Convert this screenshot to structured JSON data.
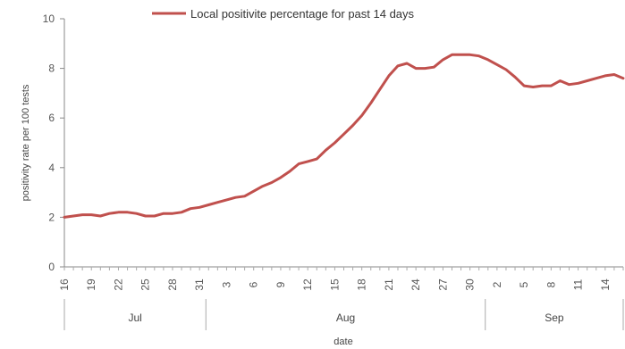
{
  "chart_data": {
    "type": "line",
    "legend": {
      "label": "Local positivite percentage for past 14 days",
      "position": "top",
      "color": "#c0504d"
    },
    "ylabel": "positivity rate per 100 tests",
    "xlabel": "date",
    "ylim": [
      0,
      10
    ],
    "yticks": [
      "0",
      "2",
      "4",
      "6",
      "8",
      "10"
    ],
    "grid": false,
    "x_tick_labels": [
      "16",
      "19",
      "22",
      "25",
      "28",
      "31",
      "3",
      "6",
      "9",
      "12",
      "15",
      "18",
      "21",
      "24",
      "27",
      "30",
      "2",
      "5",
      "8",
      "11",
      "14"
    ],
    "months": [
      "Jul",
      "Aug",
      "Sep"
    ],
    "series": [
      {
        "name": "Local positivite percentage for past 14 days",
        "color": "#c0504d",
        "x": [
          "2020-07-16",
          "2020-07-17",
          "2020-07-18",
          "2020-07-19",
          "2020-07-20",
          "2020-07-21",
          "2020-07-22",
          "2020-07-23",
          "2020-07-24",
          "2020-07-25",
          "2020-07-26",
          "2020-07-27",
          "2020-07-28",
          "2020-07-29",
          "2020-07-30",
          "2020-07-31",
          "2020-08-01",
          "2020-08-02",
          "2020-08-03",
          "2020-08-04",
          "2020-08-05",
          "2020-08-06",
          "2020-08-07",
          "2020-08-08",
          "2020-08-09",
          "2020-08-10",
          "2020-08-11",
          "2020-08-12",
          "2020-08-13",
          "2020-08-14",
          "2020-08-15",
          "2020-08-16",
          "2020-08-17",
          "2020-08-18",
          "2020-08-19",
          "2020-08-20",
          "2020-08-21",
          "2020-08-22",
          "2020-08-23",
          "2020-08-24",
          "2020-08-25",
          "2020-08-26",
          "2020-08-27",
          "2020-08-28",
          "2020-08-29",
          "2020-08-30",
          "2020-08-31",
          "2020-09-01",
          "2020-09-02",
          "2020-09-03",
          "2020-09-04",
          "2020-09-05",
          "2020-09-06",
          "2020-09-07",
          "2020-09-08",
          "2020-09-09",
          "2020-09-10",
          "2020-09-11",
          "2020-09-12",
          "2020-09-13",
          "2020-09-14",
          "2020-09-15",
          "2020-09-16"
        ],
        "values": [
          2.0,
          2.05,
          2.1,
          2.1,
          2.05,
          2.15,
          2.2,
          2.2,
          2.15,
          2.05,
          2.05,
          2.15,
          2.15,
          2.2,
          2.35,
          2.4,
          2.5,
          2.6,
          2.7,
          2.8,
          2.85,
          3.05,
          3.25,
          3.4,
          3.6,
          3.85,
          4.15,
          4.25,
          4.35,
          4.7,
          5.0,
          5.35,
          5.7,
          6.1,
          6.6,
          7.15,
          7.7,
          8.1,
          8.2,
          8.0,
          8.0,
          8.05,
          8.35,
          8.55,
          8.55,
          8.55,
          8.5,
          8.35,
          8.15,
          7.95,
          7.65,
          7.3,
          7.25,
          7.3,
          7.3,
          7.5,
          7.35,
          7.4,
          7.5,
          7.6,
          7.7,
          7.75,
          7.6
        ]
      }
    ]
  }
}
